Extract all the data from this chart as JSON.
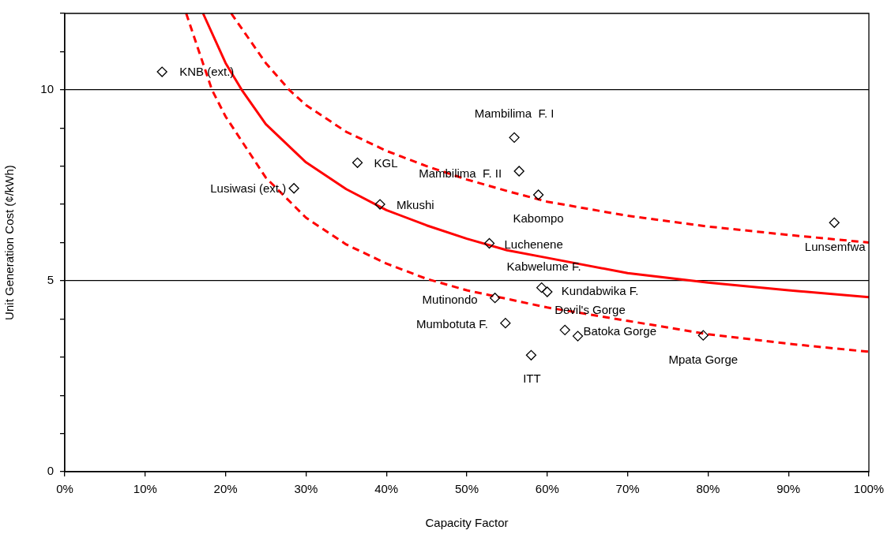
{
  "chart_data": {
    "type": "scatter",
    "xlabel": "Capacity Factor",
    "ylabel": "Unit Generation Cost (¢/kWh)",
    "xlim": [
      0,
      100
    ],
    "ylim": [
      0,
      12
    ],
    "xticks": [
      {
        "value": 0,
        "label": "0%"
      },
      {
        "value": 10,
        "label": "10%"
      },
      {
        "value": 20,
        "label": "20%"
      },
      {
        "value": 30,
        "label": "30%"
      },
      {
        "value": 40,
        "label": "40%"
      },
      {
        "value": 50,
        "label": "50%"
      },
      {
        "value": 60,
        "label": "60%"
      },
      {
        "value": 70,
        "label": "70%"
      },
      {
        "value": 80,
        "label": "80%"
      },
      {
        "value": 90,
        "label": "90%"
      },
      {
        "value": 100,
        "label": "100%"
      }
    ],
    "yticks": [
      0,
      {
        "value": 1,
        "label": null
      },
      {
        "value": 2,
        "label": null
      },
      {
        "value": 3,
        "label": null
      },
      {
        "value": 4,
        "label": null
      },
      5,
      {
        "value": 6,
        "label": null
      },
      {
        "value": 7,
        "label": null
      },
      {
        "value": 8,
        "label": null
      },
      {
        "value": 9,
        "label": null
      },
      10,
      {
        "value": 11,
        "label": null
      },
      {
        "value": 12,
        "label": null
      }
    ],
    "grid": "y",
    "legend": false,
    "series": [
      {
        "type": "scatter",
        "color": "#000000",
        "marker": "diamond",
        "x": [
          12.1,
          28.5,
          36.4,
          39.2,
          55.9,
          56.5,
          58.9,
          52.8,
          59.3,
          60.0,
          53.5,
          54.8,
          62.2,
          63.8,
          79.4,
          58.0,
          95.7
        ],
        "values": [
          10.47,
          7.42,
          8.09,
          7.0,
          8.75,
          7.87,
          7.25,
          5.98,
          4.82,
          4.71,
          4.55,
          3.89,
          3.71,
          3.55,
          3.57,
          3.05,
          6.52
        ]
      },
      {
        "type": "line",
        "color": "#ff0000",
        "line_style": "solid",
        "marker": "none",
        "x": [
          17.2,
          20,
          22,
          25,
          30,
          35,
          40,
          45,
          50,
          55,
          60,
          70,
          80,
          90,
          100
        ],
        "values": [
          12.0,
          10.7,
          10.0,
          9.1,
          8.1,
          7.4,
          6.85,
          6.45,
          6.1,
          5.8,
          5.6,
          5.2,
          4.95,
          4.75,
          4.57
        ]
      },
      {
        "type": "line",
        "color": "#ff0000",
        "line_style": "dashed",
        "marker": "none",
        "x": [
          20.7,
          25,
          27.9,
          30,
          35,
          40,
          45,
          50,
          55,
          60,
          70,
          80,
          90,
          100
        ],
        "values": [
          12.0,
          10.7,
          10.0,
          9.6,
          8.9,
          8.4,
          8.0,
          7.65,
          7.35,
          7.07,
          6.7,
          6.42,
          6.2,
          6.0
        ]
      },
      {
        "type": "line",
        "color": "#ff0000",
        "line_style": "dashed",
        "marker": "none",
        "x": [
          15.1,
          18.3,
          20,
          25,
          30,
          35,
          40,
          45,
          50,
          60,
          70,
          80,
          90,
          100
        ],
        "values": [
          12.0,
          10.0,
          9.3,
          7.7,
          6.65,
          5.95,
          5.45,
          5.05,
          4.75,
          4.3,
          3.95,
          3.6,
          3.35,
          3.14
        ]
      }
    ],
    "annotations": [
      {
        "text": "KNB (ext.)",
        "x": 12.1,
        "y": 10.47
      },
      {
        "text": "Lusiwasi (ext.)",
        "x": 28.5,
        "y": 7.42
      },
      {
        "text": "KGL",
        "x": 36.4,
        "y": 8.09
      },
      {
        "text": "Mkushi",
        "x": 39.2,
        "y": 7.0
      },
      {
        "text": "Mambilima  F. I",
        "x": 55.9,
        "y": 8.75
      },
      {
        "text": "Mambilima  F. II",
        "x": 56.5,
        "y": 7.87
      },
      {
        "text": "Kabompo",
        "x": 58.9,
        "y": 7.25
      },
      {
        "text": "Luchenene",
        "x": 52.8,
        "y": 5.98
      },
      {
        "text": "Kabwelume F.",
        "x": 59.3,
        "y": 4.82
      },
      {
        "text": "Kundabwika F.",
        "x": 60.0,
        "y": 4.71
      },
      {
        "text": "Mutinondo",
        "x": 53.5,
        "y": 4.55
      },
      {
        "text": "Mumbotuta F.",
        "x": 54.8,
        "y": 3.89
      },
      {
        "text": "Devil's Gorge",
        "x": 62.2,
        "y": 3.71
      },
      {
        "text": "Batoka Gorge",
        "x": 63.8,
        "y": 3.55
      },
      {
        "text": "Mpata Gorge",
        "x": 79.4,
        "y": 3.57
      },
      {
        "text": "ITT",
        "x": 58.0,
        "y": 3.05
      },
      {
        "text": "Lunsemfwa",
        "x": 95.7,
        "y": 6.52
      }
    ]
  }
}
